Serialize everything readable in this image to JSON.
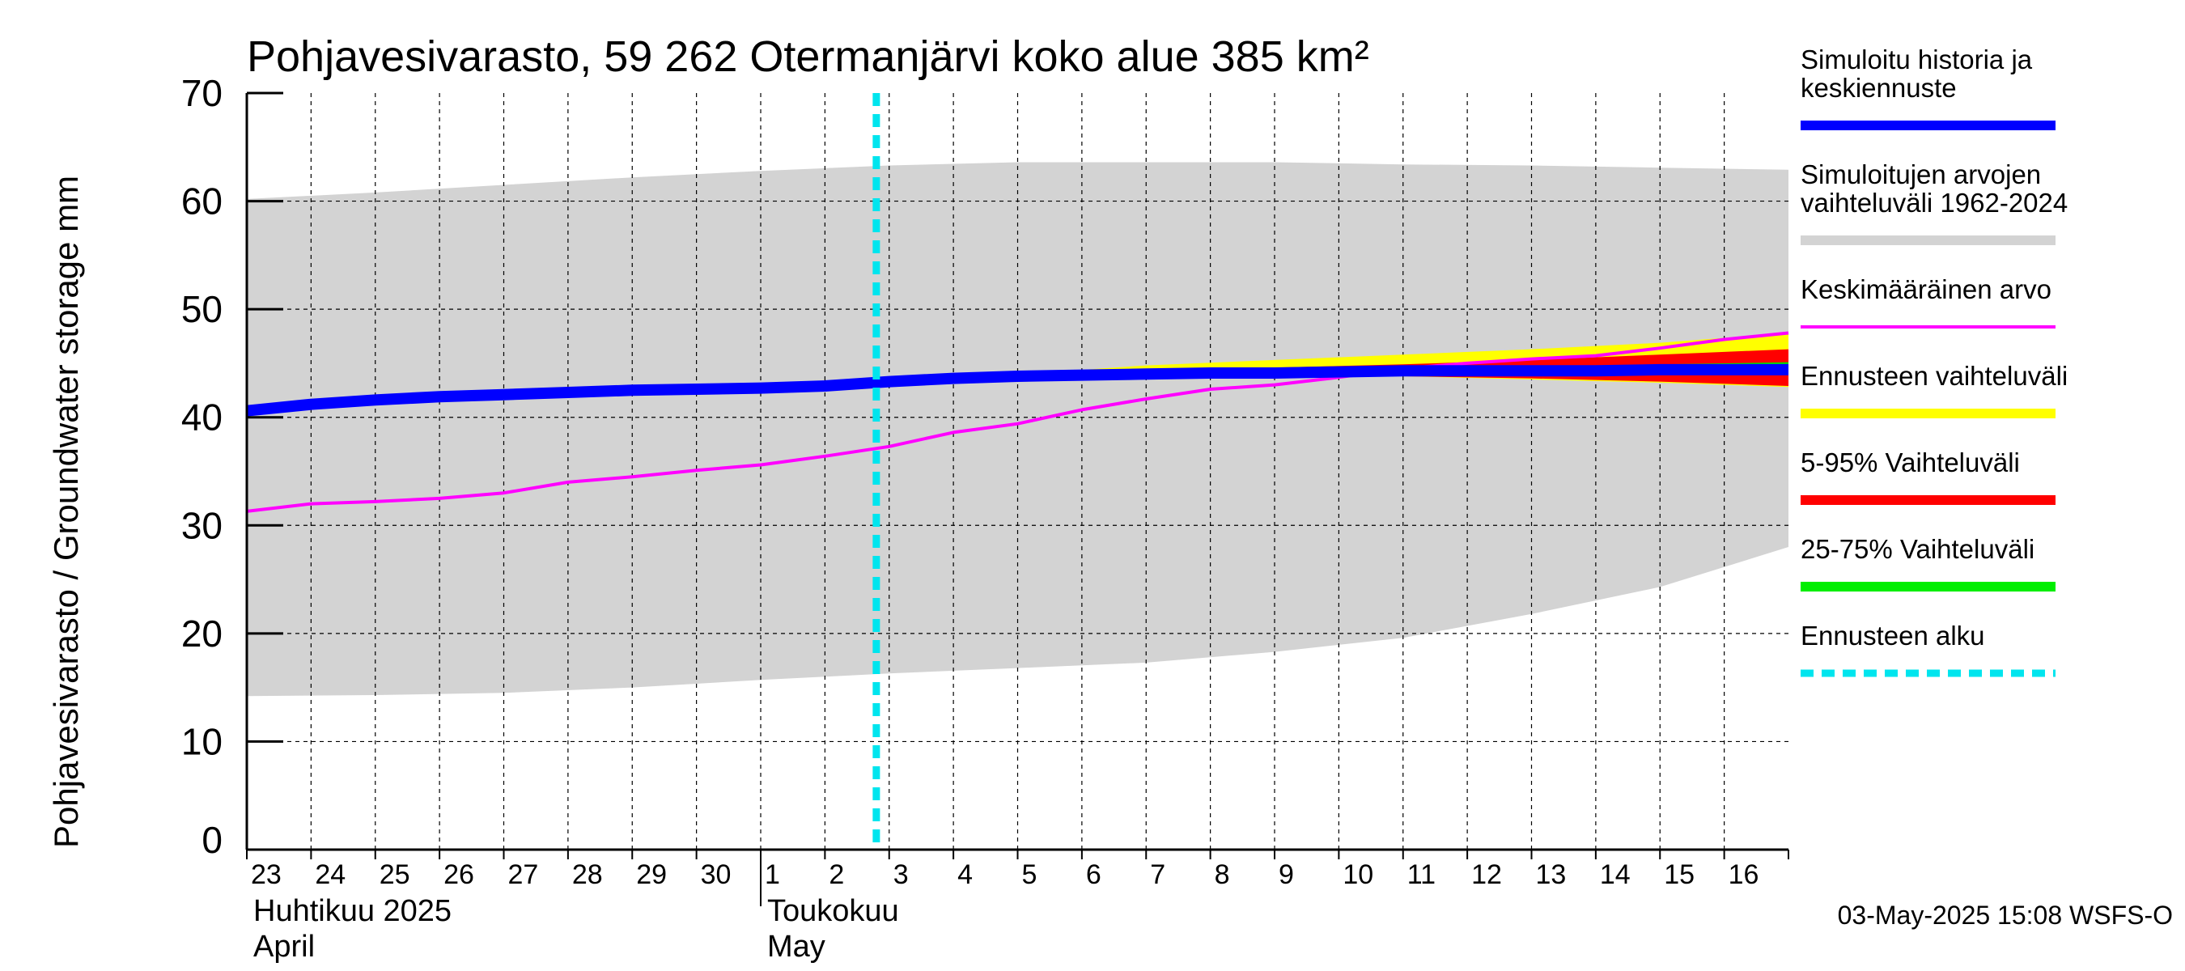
{
  "chart_data": {
    "type": "area",
    "title": "Pohjavesivarasto, 59 262 Otermanjärvi koko alue 385 km²",
    "ylabel": "Pohjavesivarasto / Groundwater storage   mm",
    "ylim": [
      0,
      70
    ],
    "yticks": [
      "0",
      "10",
      "20",
      "30",
      "40",
      "50",
      "60",
      "70"
    ],
    "xdays": [
      "23",
      "24",
      "25",
      "26",
      "27",
      "28",
      "29",
      "30",
      "1",
      "2",
      "3",
      "4",
      "5",
      "6",
      "7",
      "8",
      "9",
      "10",
      "11",
      "12",
      "13",
      "14",
      "15",
      "16"
    ],
    "months": [
      {
        "fi": "Huhtikuu  2025",
        "en": "April",
        "start_index": 0
      },
      {
        "fi": "Toukokuu",
        "en": "May",
        "start_index": 8
      }
    ],
    "forecast_start_x": 9.8,
    "grid": true,
    "legend_position": "right",
    "series": [
      {
        "name": "Simuloitujen arvojen vaihteluväli 1962-2024",
        "kind": "band",
        "color": "#d3d3d3",
        "x": [
          0,
          2,
          4,
          6,
          8,
          10,
          12,
          14,
          16,
          18,
          20,
          22,
          24
        ],
        "upper": [
          60.2,
          60.8,
          61.5,
          62.2,
          62.8,
          63.3,
          63.6,
          63.6,
          63.6,
          63.4,
          63.3,
          63.1,
          62.9
        ],
        "lower": [
          14.2,
          14.3,
          14.5,
          15.0,
          15.7,
          16.3,
          16.8,
          17.3,
          18.3,
          19.6,
          21.8,
          24.3,
          28.0
        ]
      },
      {
        "name": "Ennusteen vaihteluväli",
        "kind": "band",
        "color": "#ffff00",
        "x": [
          10,
          12,
          14,
          16,
          18,
          20,
          22,
          24
        ],
        "upper": [
          43.4,
          44.0,
          44.8,
          45.3,
          45.8,
          46.3,
          46.9,
          47.8
        ],
        "lower": [
          43.2,
          43.5,
          43.8,
          44.0,
          43.8,
          43.5,
          43.2,
          42.8
        ]
      },
      {
        "name": "5-95% Vaihteluväli",
        "kind": "band",
        "color": "#ff0000",
        "x": [
          10,
          12,
          14,
          16,
          18,
          20,
          22,
          24
        ],
        "upper": [
          43.3,
          43.8,
          44.3,
          44.6,
          44.9,
          45.3,
          45.8,
          46.3
        ],
        "lower": [
          43.2,
          43.5,
          43.8,
          44.0,
          43.8,
          43.6,
          43.3,
          42.9
        ]
      },
      {
        "name": "25-75% Vaihteluväli",
        "kind": "band",
        "color": "#00dd00",
        "x": [
          10,
          12,
          14,
          16,
          18,
          20,
          22,
          24
        ],
        "upper": [
          43.3,
          43.7,
          44.1,
          44.3,
          44.5,
          44.7,
          44.9,
          45.1
        ],
        "lower": [
          43.2,
          43.6,
          43.9,
          44.1,
          44.2,
          44.2,
          44.2,
          44.2
        ]
      },
      {
        "name": "Simuloitu historia ja keskiennuste",
        "kind": "line",
        "color": "#0000ff",
        "x": [
          0,
          1,
          2,
          3,
          4,
          5,
          6,
          7,
          8,
          9,
          10,
          11,
          12,
          13,
          14,
          15,
          16,
          17,
          18,
          19,
          20,
          21,
          22,
          23,
          24
        ],
        "values": [
          40.6,
          41.2,
          41.6,
          41.9,
          42.1,
          42.3,
          42.5,
          42.6,
          42.7,
          42.9,
          43.3,
          43.6,
          43.8,
          43.9,
          44.0,
          44.1,
          44.1,
          44.2,
          44.3,
          44.3,
          44.3,
          44.3,
          44.4,
          44.4,
          44.4
        ]
      },
      {
        "name": "Keskimääräinen arvo",
        "kind": "line",
        "color": "#ff00ff",
        "x": [
          0,
          1,
          2,
          3,
          4,
          5,
          6,
          7,
          8,
          9,
          10,
          11,
          12,
          13,
          14,
          15,
          16,
          17,
          18,
          19,
          20,
          21,
          22,
          23,
          24
        ],
        "values": [
          31.3,
          32.0,
          32.2,
          32.5,
          33.0,
          34.0,
          34.5,
          35.1,
          35.6,
          36.4,
          37.3,
          38.6,
          39.4,
          40.7,
          41.7,
          42.6,
          43.0,
          43.7,
          44.5,
          45.0,
          45.4,
          45.7,
          46.4,
          47.2,
          47.8
        ]
      },
      {
        "name": "Ennusteen alku",
        "kind": "vline",
        "color": "#00e5ee"
      }
    ],
    "legend": [
      {
        "label": "Simuloitu historia ja keskiennuste",
        "color": "#0000ff",
        "style": "thick"
      },
      {
        "label": "Simuloitujen arvojen vaihteluväli 1962-2024",
        "color": "#d3d3d3",
        "style": "thick"
      },
      {
        "label": "Keskimääräinen arvo",
        "color": "#ff00ff",
        "style": "thin"
      },
      {
        "label": "Ennusteen vaihteluväli",
        "color": "#ffff00",
        "style": "thick"
      },
      {
        "label": "5-95% Vaihteluväli",
        "color": "#ff0000",
        "style": "thick"
      },
      {
        "label": "25-75% Vaihteluväli",
        "color": "#00ee00",
        "style": "thick"
      },
      {
        "label": "Ennusteen alku",
        "color": "#00e5ee",
        "style": "dashed"
      }
    ],
    "timestamp": "03-May-2025 15:08 WSFS-O"
  }
}
